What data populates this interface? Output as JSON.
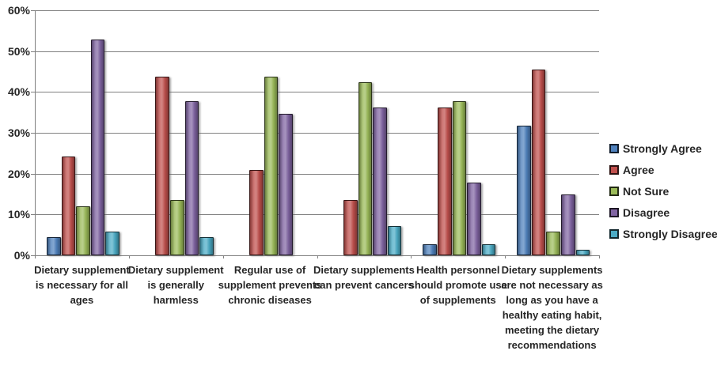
{
  "chart_data": {
    "type": "bar",
    "title": "",
    "xlabel": "",
    "ylabel": "",
    "categories": [
      "Dietary supplement is necessary for all ages",
      "Dietary supplement is generally harmless",
      "Regular use of supplement prevents chronic diseases",
      "Dietary supplements can prevent cancers",
      "Health personnel should promote use of supplements",
      "Dietary supplements are not necessary as long as you have a healthy eating habit, meeting the dietary recommendations"
    ],
    "series": [
      {
        "name": "Strongly Agree",
        "color": "#4F81BD",
        "values": [
          4.4,
          0,
          0,
          0,
          2.8,
          31.7
        ]
      },
      {
        "name": "Agree",
        "color": "#C0504D",
        "values": [
          24.1,
          43.8,
          21.0,
          13.5,
          36.1,
          45.4
        ]
      },
      {
        "name": "Not Sure",
        "color": "#9BBB59",
        "values": [
          12.0,
          13.5,
          43.8,
          42.3,
          37.7,
          5.8
        ]
      },
      {
        "name": "Disagree",
        "color": "#8064A2",
        "values": [
          52.9,
          37.8,
          34.7,
          36.1,
          17.9,
          14.9
        ]
      },
      {
        "name": "Strongly Disagree",
        "color": "#4BACC6",
        "values": [
          5.9,
          4.4,
          0,
          7.2,
          2.8,
          1.4
        ]
      }
    ],
    "ylim": [
      0,
      60
    ],
    "ytick_values": [
      0,
      10,
      20,
      30,
      40,
      50,
      60
    ],
    "ytick_labels": [
      "0%",
      "10%",
      "20%",
      "30%",
      "40%",
      "50%",
      "60%"
    ],
    "grid": true,
    "legend_position": "right",
    "colors": {
      "grid": "#808080",
      "axis": "#808080",
      "text": "#262626"
    }
  }
}
